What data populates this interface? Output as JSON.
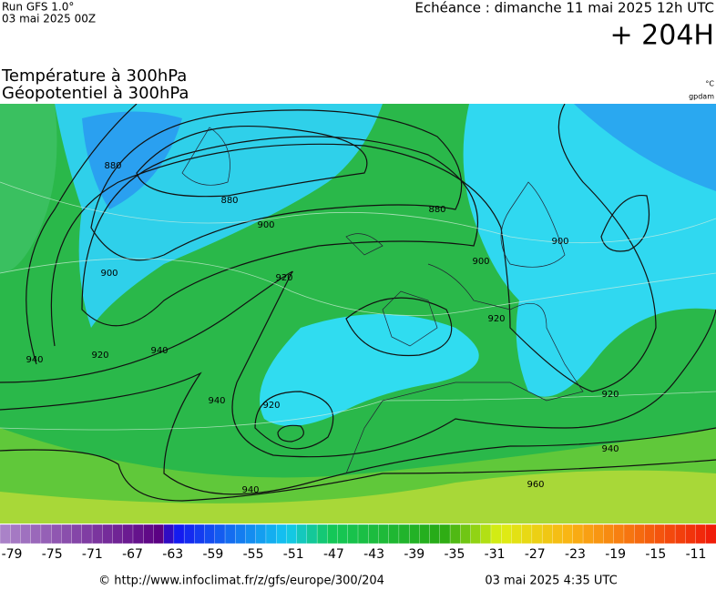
{
  "header": {
    "run": "Run GFS 1.0°",
    "run_date": "03 mai 2025 00Z",
    "valid": "Echéance : dimanche 11 mai 2025 12h UTC",
    "lead": "+ 204H",
    "title_temp": "Température à 300hPa",
    "title_geo": "Géopotentiel à 300hPa",
    "unit_temp": "°C",
    "unit_geo": "gpdam"
  },
  "map": {
    "contour_labels": [
      880,
      880,
      900,
      900,
      920,
      920,
      940,
      940,
      920,
      920,
      940,
      940,
      960,
      880,
      900,
      920,
      900,
      940
    ]
  },
  "legend": {
    "ticks": [
      -79,
      -75,
      -71,
      -67,
      -63,
      -59,
      -55,
      -51,
      -47,
      -43,
      -39,
      -35,
      -31,
      -27,
      -23,
      -19,
      -15,
      -11
    ]
  },
  "footer": {
    "source": "© http://www.infoclimat.fr/z/gfs/europe/300/204",
    "generated": "03 mai 2025  4:35 UTC"
  }
}
